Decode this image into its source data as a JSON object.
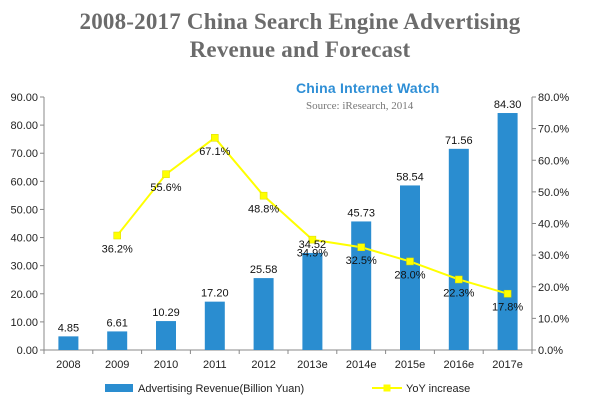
{
  "title_line1": "2008-2017  China  Search Engine Advertising",
  "title_line2": "Revenue and Forecast",
  "watermark": "China Internet Watch",
  "source": "Source: iResearch, 2014",
  "colors": {
    "bar": "#2a8dd0",
    "line": "#ffff00",
    "title": "#6b6b6b",
    "watermark": "#2f8fd6"
  },
  "chart_data": {
    "type": "bar",
    "categories": [
      "2008",
      "2009",
      "2010",
      "2011",
      "2012",
      "2013e",
      "2014e",
      "2015e",
      "2016e",
      "2017e"
    ],
    "series": [
      {
        "name": "Advertising Revenue(Billion Yuan)",
        "type": "bar",
        "axis": "left",
        "values": [
          4.85,
          6.61,
          10.29,
          17.2,
          25.58,
          34.52,
          45.73,
          58.54,
          71.56,
          84.3
        ],
        "labels": [
          "4.85",
          "6.61",
          "10.29",
          "17.20",
          "25.58",
          "34.52",
          "45.73",
          "58.54",
          "71.56",
          "84.30"
        ]
      },
      {
        "name": "YoY increase",
        "type": "line",
        "axis": "right",
        "values": [
          null,
          36.2,
          55.6,
          67.1,
          48.8,
          34.9,
          32.5,
          28.0,
          22.3,
          17.8
        ],
        "labels": [
          "",
          "36.2%",
          "55.6%",
          "67.1%",
          "48.8%",
          "34.9%",
          "32.5%",
          "28.0%",
          "22.3%",
          "17.8%"
        ]
      }
    ],
    "y_left": {
      "min": 0,
      "max": 90,
      "step": 10,
      "ticks": [
        "0.00",
        "10.00",
        "20.00",
        "30.00",
        "40.00",
        "50.00",
        "60.00",
        "70.00",
        "80.00",
        "90.00"
      ]
    },
    "y_right": {
      "min": 0,
      "max": 80,
      "step": 10,
      "ticks": [
        "0.0%",
        "10.0%",
        "20.0%",
        "30.0%",
        "40.0%",
        "50.0%",
        "60.0%",
        "70.0%",
        "80.0%"
      ]
    },
    "grid": false,
    "legend_position": "bottom"
  }
}
